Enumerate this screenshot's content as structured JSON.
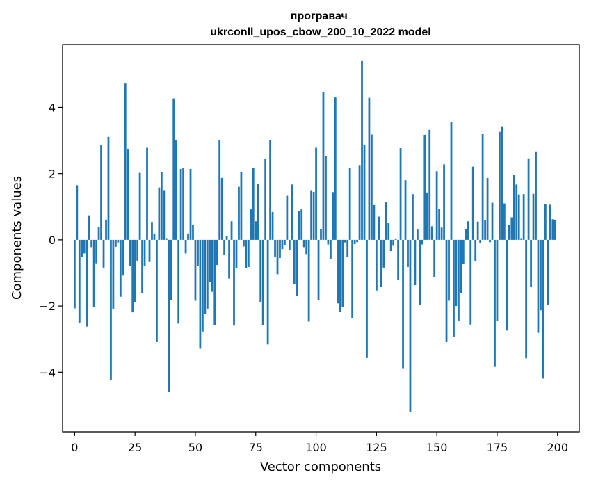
{
  "chart_data": {
    "type": "bar",
    "title": "програвач\nukrconll_upos_cbow_200_10_2022 model",
    "xlabel": "Vector components",
    "ylabel": "Components values",
    "xlim": [
      -5,
      209
    ],
    "ylim": [
      -5.8,
      5.9
    ],
    "xticks": [
      0,
      25,
      50,
      75,
      100,
      125,
      150,
      175,
      200
    ],
    "yticks": [
      -4,
      -2,
      0,
      2,
      4
    ],
    "color": "#1f77b4",
    "grid": false,
    "x": [
      0,
      1,
      2,
      3,
      4,
      5,
      6,
      7,
      8,
      9,
      10,
      11,
      12,
      13,
      14,
      15,
      16,
      17,
      18,
      19,
      20,
      21,
      22,
      23,
      24,
      25,
      26,
      27,
      28,
      29,
      30,
      31,
      32,
      33,
      34,
      35,
      36,
      37,
      38,
      39,
      40,
      41,
      42,
      43,
      44,
      45,
      46,
      47,
      48,
      49,
      50,
      51,
      52,
      53,
      54,
      55,
      56,
      57,
      58,
      59,
      60,
      61,
      62,
      63,
      64,
      65,
      66,
      67,
      68,
      69,
      70,
      71,
      72,
      73,
      74,
      75,
      76,
      77,
      78,
      79,
      80,
      81,
      82,
      83,
      84,
      85,
      86,
      87,
      88,
      89,
      90,
      91,
      92,
      93,
      94,
      95,
      96,
      97,
      98,
      99,
      100,
      101,
      102,
      103,
      104,
      105,
      106,
      107,
      108,
      109,
      110,
      111,
      112,
      113,
      114,
      115,
      116,
      117,
      118,
      119,
      120,
      121,
      122,
      123,
      124,
      125,
      126,
      127,
      128,
      129,
      130,
      131,
      132,
      133,
      134,
      135,
      136,
      137,
      138,
      139,
      140,
      141,
      142,
      143,
      144,
      145,
      146,
      147,
      148,
      149,
      150,
      151,
      152,
      153,
      154,
      155,
      156,
      157,
      158,
      159,
      160,
      161,
      162,
      163,
      164,
      165,
      166,
      167,
      168,
      169,
      170,
      171,
      172,
      173,
      174,
      175,
      176,
      177,
      178,
      179,
      180,
      181,
      182,
      183,
      184,
      185,
      186,
      187,
      188,
      189,
      190,
      191,
      192,
      193,
      194,
      195,
      196,
      197,
      198,
      199
    ],
    "values": [
      -2.07,
      1.65,
      -2.52,
      -0.52,
      -0.41,
      -2.62,
      0.74,
      -0.22,
      -2.03,
      -0.71,
      0.39,
      2.87,
      -0.84,
      0.61,
      3.11,
      -4.23,
      -2.08,
      -0.21,
      -0.08,
      -1.72,
      -1.08,
      4.72,
      2.75,
      -0.78,
      -2.19,
      -1.89,
      -0.63,
      2.02,
      -1.62,
      -0.79,
      2.78,
      -0.67,
      0.54,
      0.19,
      -3.09,
      1.58,
      2.04,
      1.5,
      0.05,
      -4.6,
      -1.81,
      4.27,
      3.01,
      -2.53,
      2.14,
      2.16,
      -0.41,
      0.19,
      2.14,
      0.44,
      -1.84,
      -0.78,
      -3.29,
      -2.77,
      -2.23,
      -2.08,
      -1.27,
      -1.57,
      -2.58,
      -0.76,
      3.0,
      1.87,
      -0.46,
      0.12,
      -1.17,
      0.56,
      -2.59,
      -0.86,
      1.6,
      2.05,
      -0.2,
      -0.86,
      -0.82,
      0.92,
      2.17,
      0.56,
      1.68,
      -1.89,
      -2.57,
      2.44,
      -3.16,
      3.02,
      0.84,
      -0.53,
      -1.04,
      -0.55,
      -0.28,
      -0.16,
      1.33,
      -0.31,
      1.67,
      -1.33,
      -1.7,
      0.86,
      0.92,
      -0.22,
      -0.43,
      -2.47,
      1.5,
      1.45,
      2.78,
      -1.82,
      0.33,
      4.45,
      2.52,
      -0.14,
      -0.59,
      1.44,
      4.3,
      -1.92,
      -2.18,
      -2.03,
      -0.08,
      -0.51,
      2.17,
      -2.37,
      -0.13,
      -0.07,
      2.26,
      5.42,
      2.86,
      -3.57,
      4.29,
      3.18,
      1.05,
      -1.53,
      0.7,
      -1.41,
      -0.84,
      1.13,
      0.52,
      -0.34,
      -0.18,
      0.04,
      -1.22,
      2.77,
      -3.88,
      1.8,
      -0.82,
      -5.21,
      1.38,
      -1.37,
      0.31,
      -1.96,
      -0.14,
      3.17,
      1.43,
      3.32,
      0.41,
      -1.13,
      2.07,
      0.94,
      0.37,
      2.28,
      -3.09,
      -1.84,
      3.55,
      -2.93,
      -2.0,
      -2.46,
      -1.6,
      -0.73,
      0.33,
      0.56,
      -2.56,
      2.21,
      -0.64,
      0.55,
      -0.09,
      3.2,
      0.59,
      1.87,
      -0.07,
      1.12,
      -3.84,
      -2.46,
      3.26,
      3.43,
      1.1,
      -2.74,
      0.45,
      0.68,
      1.97,
      1.67,
      1.37,
      0.05,
      1.38,
      -3.58,
      2.46,
      -1.43,
      1.39,
      2.67,
      -2.81,
      -2.13,
      -4.19,
      1.07,
      -1.97,
      1.06,
      0.62,
      0.6
    ]
  }
}
